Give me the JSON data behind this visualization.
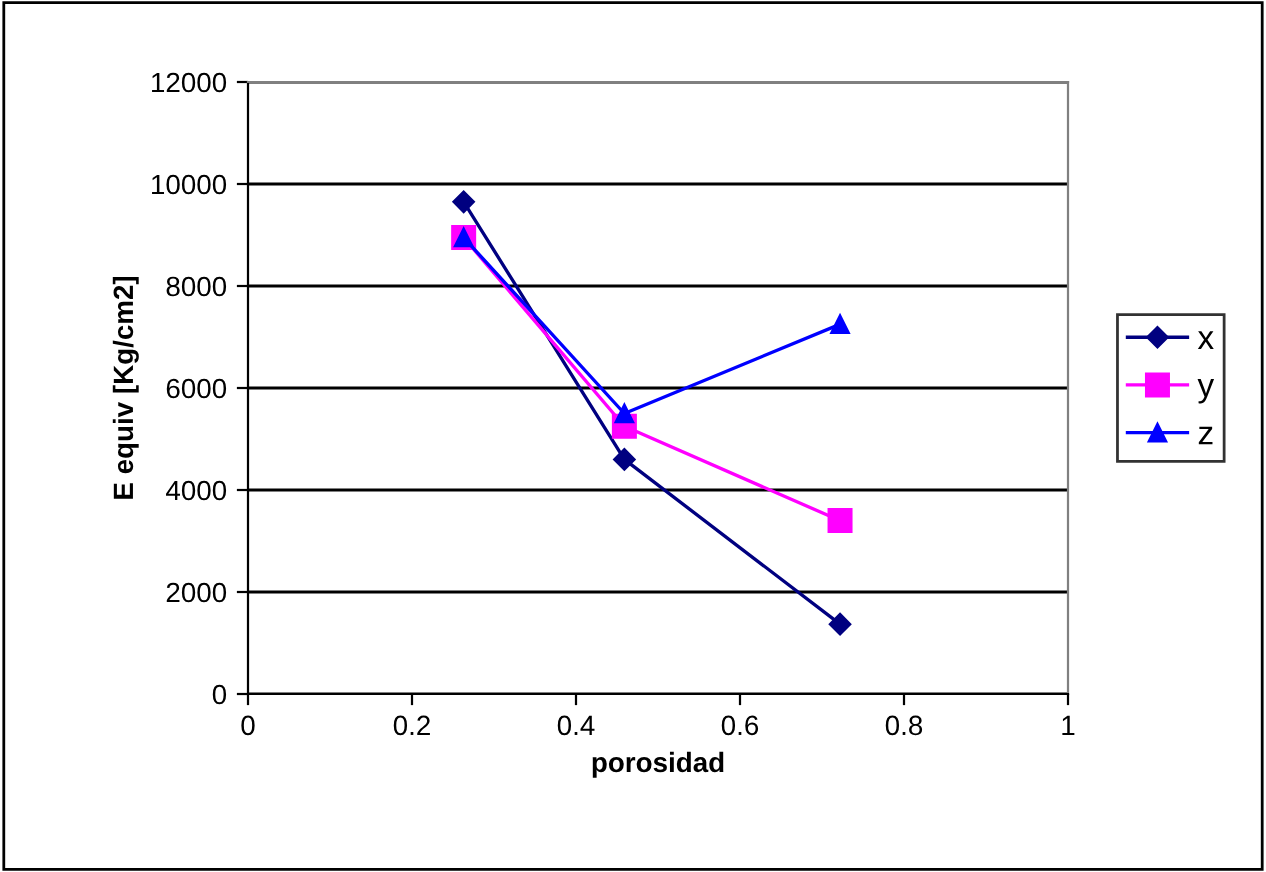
{
  "chart_data": {
    "type": "line",
    "xlabel": "porosidad",
    "ylabel": "E equiv [Kg/cm2]",
    "xlim": [
      0,
      1
    ],
    "xticks": [
      0,
      0.2,
      0.4,
      0.6,
      0.8,
      1
    ],
    "ylim": [
      0,
      12000
    ],
    "yticks": [
      0,
      2000,
      4000,
      6000,
      8000,
      10000,
      12000
    ],
    "grid": "y",
    "legend": "right",
    "line_style": "solid",
    "series": [
      {
        "name": "x",
        "color": "#000080",
        "marker": "diamond",
        "x": [
          0.263,
          0.459,
          0.722
        ],
        "values": [
          9650,
          4600,
          1370
        ]
      },
      {
        "name": "y",
        "color": "#ff00ff",
        "marker": "square",
        "x": [
          0.263,
          0.459,
          0.722
        ],
        "values": [
          8950,
          5250,
          3400
        ]
      },
      {
        "name": "z",
        "color": "#0000ff",
        "marker": "triangle",
        "x": [
          0.263,
          0.459,
          0.722
        ],
        "values": [
          8950,
          5500,
          7250
        ]
      }
    ]
  }
}
